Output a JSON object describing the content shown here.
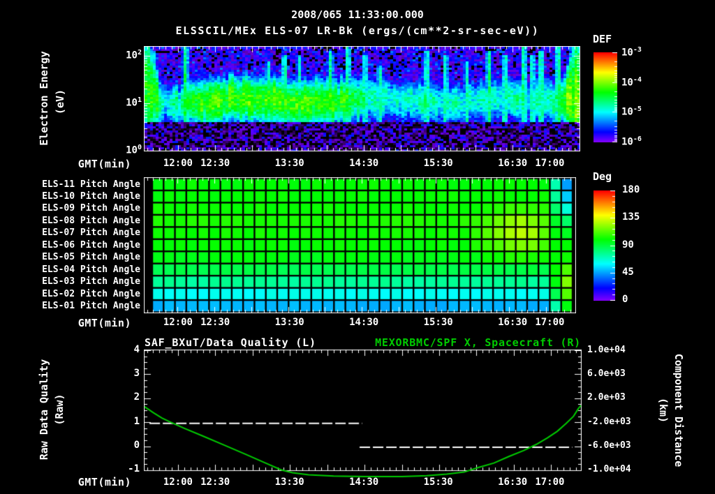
{
  "header": {
    "timestamp": "2008/065 11:33:00.000",
    "title": "ELSSCIL/MEx ELS-07 LR-Bk  (ergs/(cm**2-sr-sec-eV))"
  },
  "colors": {
    "background": "#000000",
    "text": "#ffffff",
    "accent_green": "#00cc00",
    "tick_color": "#ffffff"
  },
  "time_axis": {
    "label": "GMT(min)",
    "start_min": 693,
    "end_min": 1044,
    "minor_step_min": 5,
    "major_step_min": 30,
    "ticks": [
      {
        "t": 720,
        "label": "12:00"
      },
      {
        "t": 750,
        "label": "12:30"
      },
      {
        "t": 810,
        "label": "13:30"
      },
      {
        "t": 870,
        "label": "14:30"
      },
      {
        "t": 930,
        "label": "15:30"
      },
      {
        "t": 990,
        "label": "16:30"
      },
      {
        "t": 1020,
        "label": "17:00"
      }
    ]
  },
  "chart_data": [
    {
      "type": "heatmap",
      "name": "electron-energy-spectrogram",
      "ylabel": "Electron Energy",
      "ylabel_units": "(eV)",
      "xlabel": "GMT(min)",
      "y_scale": "log",
      "y_range_ev": [
        1,
        155
      ],
      "y_decades": 2.19,
      "y_tick_labels": [
        "10^2",
        "10^1",
        "10^0"
      ],
      "colorbar": {
        "title": "DEF",
        "scale": "log",
        "tick_labels": [
          "10^-3",
          "10^-4",
          "10^-5",
          "10^-6"
        ],
        "log_range": [
          -6,
          -3
        ]
      },
      "band_center_log_ev": 1.05,
      "band_width_dec": 0.3,
      "band_profile_log10flux": [
        [
          693,
          -4.2
        ],
        [
          703,
          -4.3
        ],
        [
          707,
          -5.0
        ],
        [
          713,
          -4.9
        ],
        [
          718,
          -4.45
        ],
        [
          722,
          -4.95
        ],
        [
          727,
          -4.35
        ],
        [
          733,
          -4.25
        ],
        [
          745,
          -4.2
        ],
        [
          770,
          -4.25
        ],
        [
          800,
          -4.2
        ],
        [
          830,
          -4.25
        ],
        [
          856,
          -4.35
        ],
        [
          866,
          -4.55
        ],
        [
          875,
          -4.8
        ],
        [
          890,
          -4.85
        ],
        [
          905,
          -4.9
        ],
        [
          918,
          -4.75
        ],
        [
          930,
          -4.95
        ],
        [
          945,
          -4.85
        ],
        [
          958,
          -4.95
        ],
        [
          968,
          -4.85
        ],
        [
          978,
          -4.95
        ],
        [
          988,
          -4.9
        ],
        [
          995,
          -4.8
        ],
        [
          1002,
          -4.95
        ],
        [
          1008,
          -4.7
        ],
        [
          1014,
          -4.85
        ],
        [
          1020,
          -4.75
        ],
        [
          1026,
          -4.6
        ],
        [
          1031,
          -4.35
        ],
        [
          1036,
          -4.1
        ],
        [
          1044,
          -4.05
        ]
      ],
      "streaks_t_strength_maxlogE": [
        [
          696,
          3,
          2.2
        ],
        [
          700,
          2,
          2.1
        ],
        [
          726,
          4,
          2.2
        ],
        [
          793,
          2,
          1.9
        ],
        [
          806,
          2.5,
          2.0
        ],
        [
          818,
          2,
          2.0
        ],
        [
          843,
          3,
          2.1
        ],
        [
          857,
          2.5,
          2.2
        ],
        [
          871,
          2,
          2.0
        ],
        [
          883,
          2,
          1.8
        ],
        [
          921,
          2.5,
          2.1
        ],
        [
          936,
          2,
          2.0
        ],
        [
          953,
          2,
          1.9
        ],
        [
          971,
          3,
          2.1
        ],
        [
          984,
          2.5,
          2.0
        ],
        [
          999,
          3,
          2.2
        ],
        [
          1006,
          2,
          2.0
        ],
        [
          1013,
          3,
          2.1
        ],
        [
          1027,
          3.5,
          2.2
        ],
        [
          1040,
          4,
          2.2
        ]
      ],
      "background_log10flux_range": [
        -6.1,
        -5.5
      ],
      "low_energy_cutoff_log_ev": 0.6
    },
    {
      "type": "heatmap",
      "name": "pitch-angle-panel",
      "row_labels": [
        "ELS-11 Pitch Angle",
        "ELS-10 Pitch Angle",
        "ELS-09 Pitch Angle",
        "ELS-08 Pitch Angle",
        "ELS-07 Pitch Angle",
        "ELS-06 Pitch Angle",
        "ELS-05 Pitch Angle",
        "ELS-04 Pitch Angle",
        "ELS-03 Pitch Angle",
        "ELS-02 Pitch Angle",
        "ELS-01 Pitch Angle"
      ],
      "colorbar": {
        "title": "Deg",
        "range_deg": [
          0,
          180
        ],
        "tick_labels": [
          "180",
          "135",
          "90",
          "45",
          "0"
        ]
      },
      "row_base_deg": [
        100,
        100,
        101,
        104,
        102,
        100,
        97,
        88,
        76,
        62,
        48
      ],
      "hotspot": {
        "center_t_min": 993,
        "sigma_t_min": 26,
        "center_row": 4,
        "sigma_row": 1.8,
        "peak_delta_deg": 27
      },
      "right_edge_deg": [
        45,
        52,
        66,
        84,
        95,
        100,
        102,
        112,
        120,
        113,
        98
      ],
      "data_end_min": 1037,
      "grid": true
    },
    {
      "type": "line",
      "name": "quality-and-distance",
      "title_left": "SAF_BXuT/Data Quality (L)",
      "title_right": "MEXORBMC/SPF X, Spacecraft (R)",
      "ylabel_left": "Raw Data Quality",
      "ylabel_left_units": "(Raw)",
      "y_left_range": [
        -1,
        4
      ],
      "y_left_ticks": [
        "4",
        "3",
        "2",
        "1",
        "0",
        "-1"
      ],
      "ylabel_right": "Component Distance",
      "ylabel_right_units": "(km)",
      "y_right_range": [
        -10000,
        10000
      ],
      "y_right_ticks": [
        "1.0e+04",
        "6.0e+03",
        "2.0e+03",
        "-2.0e+03",
        "-6.0e+03",
        "-1.0e+04"
      ],
      "series": [
        {
          "name": "SAF_BXuT/Data Quality",
          "axis": "left",
          "style": "dashed",
          "color": "#ffffff",
          "segments": [
            {
              "value": 1,
              "t_start": 697,
              "t_end": 868
            },
            {
              "value": 0,
              "t_start": 866,
              "t_end": 1037
            }
          ]
        },
        {
          "name": "MEXORBMC/SPF X Spacecraft",
          "axis": "right",
          "style": "solid",
          "color": "#00cc00",
          "points_t_km": [
            [
              693,
              600
            ],
            [
              700,
              -400
            ],
            [
              707,
              -1300
            ],
            [
              714,
              -2000
            ],
            [
              725,
              -3000
            ],
            [
              740,
              -4300
            ],
            [
              757,
              -5800
            ],
            [
              775,
              -7400
            ],
            [
              790,
              -8770
            ],
            [
              803,
              -9940
            ],
            [
              812,
              -10400
            ],
            [
              825,
              -10750
            ],
            [
              845,
              -10950
            ],
            [
              870,
              -11050
            ],
            [
              900,
              -11050
            ],
            [
              920,
              -10900
            ],
            [
              936,
              -10650
            ],
            [
              950,
              -10300
            ],
            [
              962,
              -9500
            ],
            [
              974,
              -8800
            ],
            [
              986,
              -7700
            ],
            [
              998,
              -6700
            ],
            [
              1008,
              -5700
            ],
            [
              1017,
              -4600
            ],
            [
              1025,
              -3500
            ],
            [
              1032,
              -2200
            ],
            [
              1038,
              -1000
            ],
            [
              1042,
              300
            ],
            [
              1044,
              800
            ]
          ]
        }
      ]
    }
  ]
}
